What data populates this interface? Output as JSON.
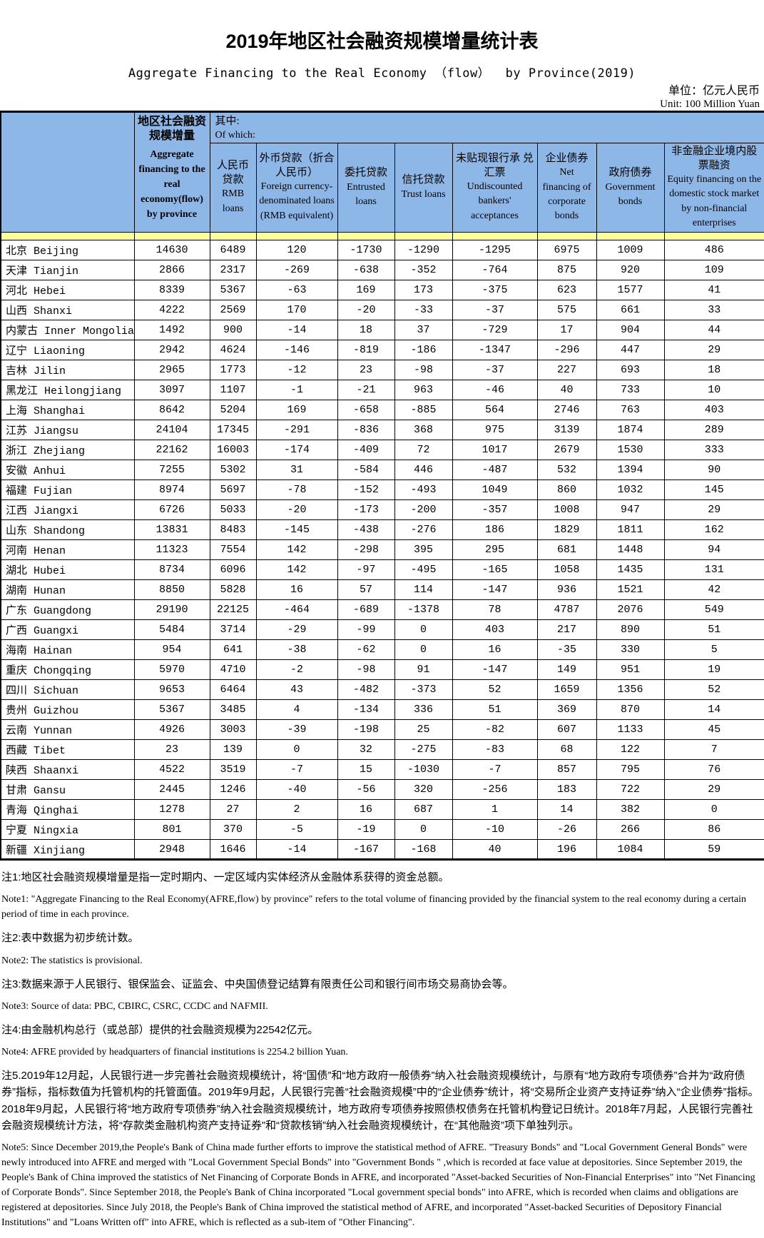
{
  "page": {
    "title_zh": "2019年地区社会融资规模增量统计表",
    "title_en": "Aggregate Financing to the Real Economy （flow）  by Province(2019)",
    "unit_zh": "单位：亿元人民币",
    "unit_en": "Unit: 100 Million Yuan"
  },
  "table": {
    "corner_label": "",
    "aggregate_header": {
      "zh": "地区社会融资 规模增量",
      "en": "Aggregate financing to the real economy(flow) by province"
    },
    "of_which": {
      "zh": "其中:",
      "en": "Of which:"
    },
    "columns": [
      {
        "zh": "人民币 贷款",
        "en": "RMB loans"
      },
      {
        "zh": "外币贷款（折合 人民币）",
        "en": "Foreign currency-denominated loans (RMB equivalent)"
      },
      {
        "zh": "委托贷款",
        "en": "Entrusted loans"
      },
      {
        "zh": "信托贷款",
        "en": "Trust loans"
      },
      {
        "zh": "未贴现银行承 兑汇票",
        "en": "Undiscounted bankers' acceptances"
      },
      {
        "zh": "企业债券",
        "en": "Net financing of corporate bonds"
      },
      {
        "zh": "政府债券",
        "en": "Government bonds"
      },
      {
        "zh": "非金融企业境内股 票融资",
        "en": "Equity financing on the domestic stock market by non-financial enterprises"
      }
    ],
    "rows": [
      {
        "province": "北京 Beijing",
        "values": [
          14630,
          6489,
          120,
          -1730,
          -1290,
          -1295,
          6975,
          1009,
          486
        ]
      },
      {
        "province": "天津 Tianjin",
        "values": [
          2866,
          2317,
          -269,
          -638,
          -352,
          -764,
          875,
          920,
          109
        ]
      },
      {
        "province": "河北 Hebei",
        "values": [
          8339,
          5367,
          -63,
          169,
          173,
          -375,
          623,
          1577,
          41
        ]
      },
      {
        "province": "山西 Shanxi",
        "values": [
          4222,
          2569,
          170,
          -20,
          -33,
          -37,
          575,
          661,
          33
        ]
      },
      {
        "province": "内蒙古 Inner Mongolia",
        "values": [
          1492,
          900,
          -14,
          18,
          37,
          -729,
          17,
          904,
          44
        ]
      },
      {
        "province": "辽宁 Liaoning",
        "values": [
          2942,
          4624,
          -146,
          -819,
          -186,
          -1347,
          -296,
          447,
          29
        ]
      },
      {
        "province": "吉林 Jilin",
        "values": [
          2965,
          1773,
          -12,
          23,
          -98,
          -37,
          227,
          693,
          18
        ]
      },
      {
        "province": "黑龙江 Heilongjiang",
        "values": [
          3097,
          1107,
          -1,
          -21,
          963,
          -46,
          40,
          733,
          10
        ]
      },
      {
        "province": "上海 Shanghai",
        "values": [
          8642,
          5204,
          169,
          -658,
          -885,
          564,
          2746,
          763,
          403
        ]
      },
      {
        "province": "江苏 Jiangsu",
        "values": [
          24104,
          17345,
          -291,
          -836,
          368,
          975,
          3139,
          1874,
          289
        ]
      },
      {
        "province": "浙江 Zhejiang",
        "values": [
          22162,
          16003,
          -174,
          -409,
          72,
          1017,
          2679,
          1530,
          333
        ]
      },
      {
        "province": "安徽 Anhui",
        "values": [
          7255,
          5302,
          31,
          -584,
          446,
          -487,
          532,
          1394,
          90
        ]
      },
      {
        "province": "福建 Fujian",
        "values": [
          8974,
          5697,
          -78,
          -152,
          -493,
          1049,
          860,
          1032,
          145
        ]
      },
      {
        "province": "江西 Jiangxi",
        "values": [
          6726,
          5033,
          -20,
          -173,
          -200,
          -357,
          1008,
          947,
          29
        ]
      },
      {
        "province": "山东 Shandong",
        "values": [
          13831,
          8483,
          -145,
          -438,
          -276,
          186,
          1829,
          1811,
          162
        ]
      },
      {
        "province": "河南 Henan",
        "values": [
          11323,
          7554,
          142,
          -298,
          395,
          295,
          681,
          1448,
          94
        ]
      },
      {
        "province": "湖北 Hubei",
        "values": [
          8734,
          6096,
          142,
          -97,
          -495,
          -165,
          1058,
          1435,
          131
        ]
      },
      {
        "province": "湖南 Hunan",
        "values": [
          8850,
          5828,
          16,
          57,
          114,
          -147,
          936,
          1521,
          42
        ]
      },
      {
        "province": "广东 Guangdong",
        "values": [
          29190,
          22125,
          -464,
          -689,
          -1378,
          78,
          4787,
          2076,
          549
        ]
      },
      {
        "province": "广西 Guangxi",
        "values": [
          5484,
          3714,
          -29,
          -99,
          0,
          403,
          217,
          890,
          51
        ]
      },
      {
        "province": "海南 Hainan",
        "values": [
          954,
          641,
          -38,
          -62,
          0,
          16,
          -35,
          330,
          5
        ]
      },
      {
        "province": "重庆 Chongqing",
        "values": [
          5970,
          4710,
          -2,
          -98,
          91,
          -147,
          149,
          951,
          19
        ]
      },
      {
        "province": "四川 Sichuan",
        "values": [
          9653,
          6464,
          43,
          -482,
          -373,
          52,
          1659,
          1356,
          52
        ]
      },
      {
        "province": "贵州 Guizhou",
        "values": [
          5367,
          3485,
          4,
          -134,
          336,
          51,
          369,
          870,
          14
        ]
      },
      {
        "province": "云南 Yunnan",
        "values": [
          4926,
          3003,
          -39,
          -198,
          25,
          -82,
          607,
          1133,
          45
        ]
      },
      {
        "province": "西藏 Tibet",
        "values": [
          23,
          139,
          0,
          32,
          -275,
          -83,
          68,
          122,
          7
        ]
      },
      {
        "province": "陕西 Shaanxi",
        "values": [
          4522,
          3519,
          -7,
          15,
          -1030,
          -7,
          857,
          795,
          76
        ]
      },
      {
        "province": "甘肃 Gansu",
        "values": [
          2445,
          1246,
          -40,
          -56,
          320,
          -256,
          183,
          722,
          29
        ]
      },
      {
        "province": "青海 Qinghai",
        "values": [
          1278,
          27,
          2,
          16,
          687,
          1,
          14,
          382,
          0
        ]
      },
      {
        "province": "宁夏 Ningxia",
        "values": [
          801,
          370,
          -5,
          -19,
          0,
          -10,
          -26,
          266,
          86
        ]
      },
      {
        "province": "新疆 Xinjiang",
        "values": [
          2948,
          1646,
          -14,
          -167,
          -168,
          40,
          196,
          1084,
          59
        ]
      }
    ]
  },
  "notes": [
    {
      "lang": "zh",
      "text": "注1:地区社会融资规模增量是指一定时期内、一定区域内实体经济从金融体系获得的资金总额。"
    },
    {
      "lang": "en",
      "text": "Note1: \"Aggregate Financing to the Real Economy(AFRE,flow) by province\" refers to the total volume of financing provided by the financial system to the real economy during a certain period of time in each province."
    },
    {
      "lang": "zh",
      "text": "注2:表中数据为初步统计数。"
    },
    {
      "lang": "en",
      "text": "Note2: The statistics is provisional."
    },
    {
      "lang": "zh",
      "text": "注3:数据来源于人民银行、银保监会、证监会、中央国债登记结算有限责任公司和银行间市场交易商协会等。"
    },
    {
      "lang": "en",
      "text": "Note3: Source of data: PBC, CBIRC, CSRC, CCDC and NAFMII."
    },
    {
      "lang": "zh",
      "text": "注4:由金融机构总行（或总部）提供的社会融资规模为22542亿元。"
    },
    {
      "lang": "en",
      "text": "Note4: AFRE provided by headquarters of financial institutions is 2254.2 billion Yuan."
    },
    {
      "lang": "zh",
      "text": "注5.2019年12月起，人民银行进一步完善社会融资规模统计，将“国债”和“地方政府一般债券”纳入社会融资规模统计，与原有“地方政府专项债券”合并为“政府债券”指标，指标数值为托管机构的托管面值。2019年9月起，人民银行完善“社会融资规模”中的“企业债券”统计，将“交易所企业资产支持证券”纳入“企业债券”指标。2018年9月起，人民银行将“地方政府专项债券”纳入社会融资规模统计，地方政府专项债券按照债权债务在托管机构登记日统计。2018年7月起，人民银行完善社会融资规模统计方法，将“存款类金融机构资产支持证券”和“贷款核销”纳入社会融资规模统计，在“其他融资”项下单独列示。"
    },
    {
      "lang": "en",
      "text": "Note5:  Since December 2019,the People's Bank of China made further efforts to improve the statistical method of AFRE. \"Treasury Bonds\" and \"Local Government General Bonds\" were newly introduced into AFRE and merged with  \"Local Government Special Bonds\" into \"Government Bonds \" ,which is recorded at face value at depositories. Since September 2019, the People's Bank of China improved the statistics of Net Financing of Corporate Bonds in AFRE, and incorporated \"Asset-backed Securities of Non-Financial Enterprises\" into \"Net Financing of Corporate Bonds\".  Since September 2018, the People's Bank of China incorporated \"Local government special bonds\" into AFRE, which is recorded when claims and obligations are registered at depositories. Since July 2018, the People's Bank of China improved the statistical method of AFRE, and incorporated \"Asset-backed Securities of Depository Financial Institutions\" and \"Loans Written off\" into AFRE, which is reflected as a sub-item of \"Other Financing\"."
    }
  ]
}
